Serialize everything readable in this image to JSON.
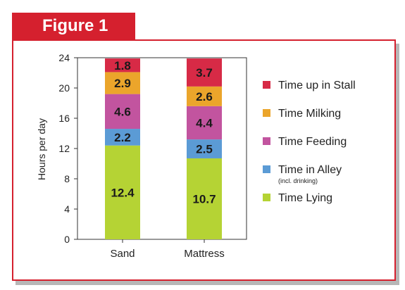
{
  "figure_label": "Figure 1",
  "colors": {
    "accent": "#d5202e",
    "frame_shadow": "#b7b7b7"
  },
  "chart_data": {
    "type": "bar",
    "stacked": true,
    "categories": [
      "Sand",
      "Mattress"
    ],
    "ylabel": "Hours per day",
    "xlabel": "",
    "ylim": [
      0,
      24
    ],
    "yticks": [
      0,
      4,
      8,
      12,
      16,
      20,
      24
    ],
    "grid": false,
    "legend_position": "right",
    "series": [
      {
        "name": "Time Lying",
        "values": [
          12.4,
          10.7
        ],
        "color": "#b5d334"
      },
      {
        "name": "Time in Alley",
        "subtitle": "(incl. drinking)",
        "values": [
          2.2,
          2.5
        ],
        "color": "#5b9bd5"
      },
      {
        "name": "Time Feeding",
        "values": [
          4.6,
          4.4
        ],
        "color": "#c2549f"
      },
      {
        "name": "Time Milking",
        "values": [
          2.9,
          2.6
        ],
        "color": "#eba52b"
      },
      {
        "name": "Time up in Stall",
        "values": [
          1.8,
          3.7
        ],
        "color": "#d72a46"
      }
    ]
  }
}
